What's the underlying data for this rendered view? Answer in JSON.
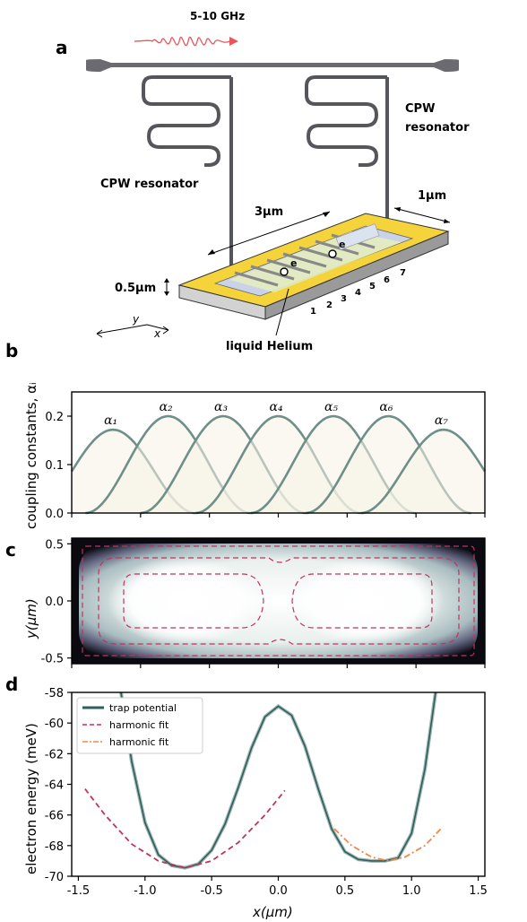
{
  "panel_a": {
    "label": "a",
    "frequency": "5-10 GHz",
    "resonator_left": "CPW resonator",
    "resonator_right_line1": "CPW",
    "resonator_right_line2": "resonator",
    "length": "3μm",
    "width": "1μm",
    "height": "0.5μm",
    "helium": "liquid Helium",
    "electron": "e",
    "electrode_numbers": [
      "1",
      "2",
      "3",
      "4",
      "5",
      "6",
      "7"
    ],
    "axis_y": "y",
    "axis_x": "x",
    "colors": {
      "gold": "#f5d63a",
      "line": "#5a5a60",
      "wave": "#e8555a",
      "pad": "#bfc6d8"
    }
  },
  "chart_data": [
    {
      "panel": "b",
      "type": "line",
      "ylabel": "coupling constants, αᵢ",
      "xlim": [
        -1.5,
        1.5
      ],
      "ylim": [
        0,
        0.25
      ],
      "yticks": [
        "0.0",
        "0.1",
        "0.2"
      ],
      "series": [
        {
          "name": "α₁",
          "peak_x": -1.2,
          "peak_y": 0.172
        },
        {
          "name": "α₂",
          "peak_x": -0.8,
          "peak_y": 0.2
        },
        {
          "name": "α₃",
          "peak_x": -0.4,
          "peak_y": 0.2
        },
        {
          "name": "α₄",
          "peak_x": 0.0,
          "peak_y": 0.2
        },
        {
          "name": "α₅",
          "peak_x": 0.4,
          "peak_y": 0.2
        },
        {
          "name": "α₆",
          "peak_x": 0.8,
          "peak_y": 0.2
        },
        {
          "name": "α₇",
          "peak_x": 1.2,
          "peak_y": 0.172
        }
      ],
      "color": "#6f8f8a"
    },
    {
      "panel": "c",
      "type": "heatmap",
      "ylabel": "y(μm)",
      "xlim": [
        -1.5,
        1.5
      ],
      "ylim": [
        -0.55,
        0.55
      ],
      "yticks": [
        "-0.5",
        "0.0",
        "0.5"
      ],
      "contour_color": "#c0345a"
    },
    {
      "panel": "d",
      "type": "line",
      "xlabel": "x(μm)",
      "ylabel": "electron energy (meV)",
      "xlim": [
        -1.55,
        1.55
      ],
      "ylim": [
        -70,
        -58
      ],
      "xticks": [
        "-1.5",
        "-1.0",
        "-0.5",
        "0.0",
        "0.5",
        "1.0",
        "1.5"
      ],
      "yticks": [
        "-70",
        "-68",
        "-66",
        "-64",
        "-62",
        "-60",
        "-58"
      ],
      "series": [
        {
          "name": "trap potential",
          "color": "#2f5f5c",
          "x": [
            -1.18,
            -1.1,
            -1.0,
            -0.9,
            -0.8,
            -0.7,
            -0.6,
            -0.5,
            -0.4,
            -0.3,
            -0.2,
            -0.1,
            0.0,
            0.1,
            0.2,
            0.3,
            0.4,
            0.5,
            0.6,
            0.7,
            0.8,
            0.9,
            1.0,
            1.1,
            1.18
          ],
          "y": [
            -58,
            -62.5,
            -66.5,
            -68.6,
            -69.3,
            -69.45,
            -69.2,
            -68.3,
            -66.6,
            -64.2,
            -61.6,
            -59.6,
            -58.9,
            -59.5,
            -61.5,
            -64.3,
            -66.9,
            -68.4,
            -68.9,
            -69.0,
            -69.0,
            -68.8,
            -67.2,
            -63.0,
            -58
          ]
        },
        {
          "name": "harmonic fit",
          "color": "#c0345a",
          "dash": "6,4",
          "x": [
            -1.45,
            -1.3,
            -1.1,
            -0.9,
            -0.7,
            -0.5,
            -0.3,
            -0.1,
            0.05
          ],
          "y": [
            -64.3,
            -66.0,
            -67.9,
            -69.0,
            -69.45,
            -69.0,
            -67.8,
            -66.0,
            -64.4
          ]
        },
        {
          "name": "harmonic fit",
          "color": "#f08a4b",
          "dash": "7,3,2,3",
          "x": [
            0.42,
            0.55,
            0.7,
            0.83,
            0.95,
            1.1,
            1.22
          ],
          "y": [
            -66.9,
            -68.0,
            -68.75,
            -69.0,
            -68.75,
            -68.0,
            -66.9
          ]
        }
      ]
    }
  ],
  "panel_b_label": "b",
  "panel_c_label": "c",
  "panel_d_label": "d"
}
